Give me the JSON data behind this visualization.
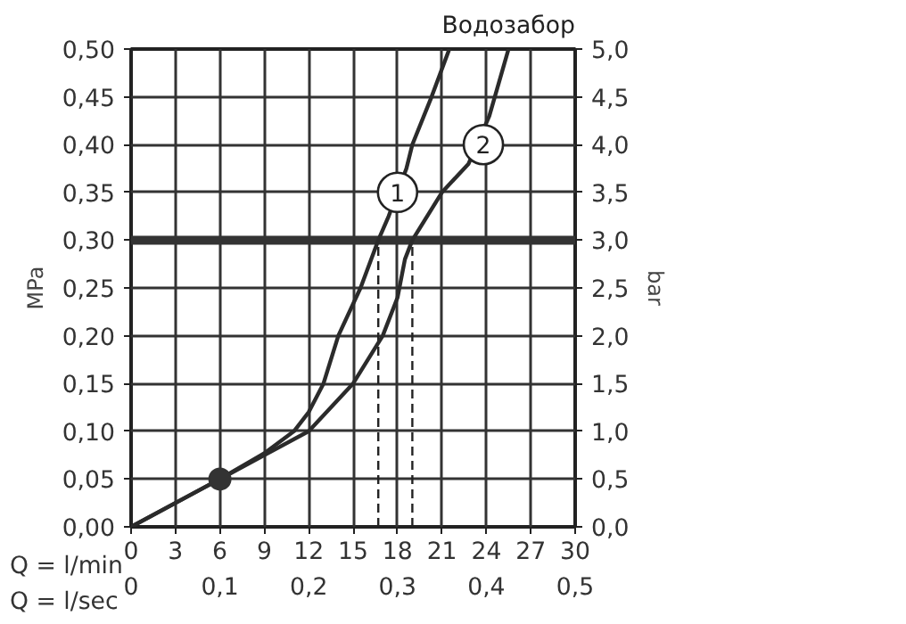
{
  "chart_data": {
    "type": "line",
    "title": "Водозабор",
    "xlabel": "Q = l/min",
    "x2label": "Q = l/sec",
    "ylabel": "MPa",
    "y2label": "bar",
    "xlim": [
      0,
      30
    ],
    "xticks": [
      0,
      3,
      6,
      9,
      12,
      15,
      18,
      21,
      24,
      27,
      30
    ],
    "x2lim": [
      0,
      0.5
    ],
    "x2ticks": [
      0,
      {
        "value": 0.1,
        "label": "0,1"
      },
      {
        "value": 0.2,
        "label": "0,2"
      },
      {
        "value": 0.3,
        "label": "0,3"
      },
      {
        "value": 0.4,
        "label": "0,4"
      },
      {
        "value": 0.5,
        "label": "0,5"
      }
    ],
    "ylim": [
      0,
      0.5
    ],
    "yticks": [
      {
        "value": 0,
        "label": "0,00"
      },
      {
        "value": 0.05,
        "label": "0,05"
      },
      {
        "value": 0.1,
        "label": "0,10"
      },
      {
        "value": 0.15,
        "label": "0,15"
      },
      {
        "value": 0.2,
        "label": "0,20"
      },
      {
        "value": 0.25,
        "label": "0,25"
      },
      {
        "value": 0.3,
        "label": "0,30"
      },
      {
        "value": 0.35,
        "label": "0,35"
      },
      {
        "value": 0.4,
        "label": "0,40"
      },
      {
        "value": 0.45,
        "label": "0,45"
      },
      {
        "value": 0.5,
        "label": "0,50"
      }
    ],
    "y2lim": [
      0,
      5
    ],
    "y2ticks": [
      {
        "value": 0,
        "label": "0,0"
      },
      {
        "value": 0.5,
        "label": "0,5"
      },
      {
        "value": 1,
        "label": "1,0"
      },
      {
        "value": 1.5,
        "label": "1,5"
      },
      {
        "value": 2,
        "label": "2,0"
      },
      {
        "value": 2.5,
        "label": "2,5"
      },
      {
        "value": 3,
        "label": "3,0"
      },
      {
        "value": 3.5,
        "label": "3,5"
      },
      {
        "value": 4,
        "label": "4,0"
      },
      {
        "value": 4.5,
        "label": "4,5"
      },
      {
        "value": 5,
        "label": "5,0"
      }
    ],
    "grid": true,
    "line_style": "solid",
    "series": [
      {
        "color": "#2b2b2b",
        "x": [
          0,
          6,
          9,
          11,
          12,
          13,
          14,
          15.5,
          16.7,
          17.4,
          18.6,
          19,
          20.3,
          21.5
        ],
        "values": [
          0,
          0.05,
          0.077,
          0.1,
          0.12,
          0.15,
          0.2,
          0.25,
          0.3,
          0.325,
          0.375,
          0.4,
          0.45,
          0.5
        ]
      },
      {
        "color": "#2b2b2b",
        "x": [
          0,
          6,
          9,
          12,
          15,
          17,
          18,
          18.5,
          19,
          21,
          22.8,
          24.2,
          25.5
        ],
        "values": [
          0,
          0.05,
          0.075,
          0.1,
          0.15,
          0.2,
          0.24,
          0.28,
          0.3,
          0.35,
          0.38,
          0.43,
          0.5
        ]
      },
      {
        "type": "scatter",
        "marker": "circle",
        "color": "#333333",
        "x": [
          6
        ],
        "values": [
          0.05
        ]
      }
    ],
    "ref_lines": [
      {
        "axis": "y",
        "value": 0.3,
        "color": "#333333"
      },
      {
        "axis": "x",
        "value": 16.7,
        "color": "#222222",
        "line_style": "dashed"
      },
      {
        "axis": "x",
        "value": 19,
        "color": "#222222",
        "line_style": "dashed"
      }
    ],
    "annotations": [
      {
        "text": "1",
        "x": 18,
        "y": 0.35
      },
      {
        "text": "2",
        "x": 23.8,
        "y": 0.4
      }
    ]
  }
}
